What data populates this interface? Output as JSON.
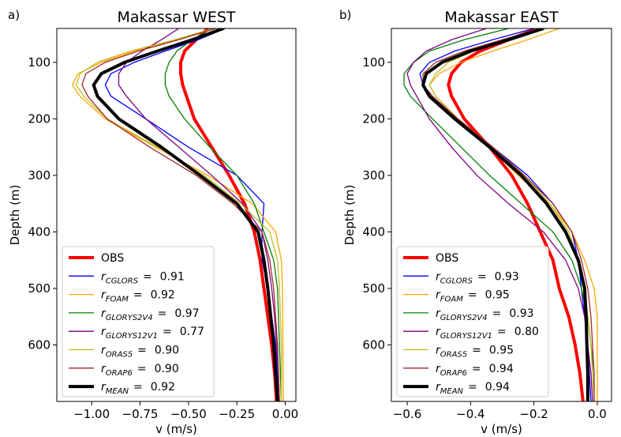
{
  "chart_data": [
    {
      "type": "line",
      "panel_label": "a)",
      "title": "Makassar WEST",
      "x_label": "v (m/s)",
      "y_label": "Depth (m)",
      "xlim": [
        -1.18,
        0.055
      ],
      "ylim": [
        700,
        40
      ],
      "y_inverted": true,
      "xticks": [
        {
          "value": -1.0,
          "label": "−1.00"
        },
        {
          "value": -0.75,
          "label": "−0.75"
        },
        {
          "value": -0.5,
          "label": "−0.50"
        },
        {
          "value": -0.25,
          "label": "−0.25"
        },
        {
          "value": 0,
          "label": "0.00"
        }
      ],
      "yticks": [
        100,
        200,
        300,
        400,
        500,
        600
      ],
      "legend": "lower left",
      "legend_symbol": "r",
      "legend_operator": "=",
      "depth": [
        40,
        60,
        80,
        100,
        120,
        140,
        160,
        200,
        250,
        300,
        350,
        400,
        450,
        500,
        550,
        600,
        650,
        700
      ],
      "series": [
        {
          "name": "OBS",
          "color": "#ff0000",
          "width": 4,
          "values": [
            -0.4,
            -0.46,
            -0.52,
            -0.54,
            -0.54,
            -0.53,
            -0.51,
            -0.47,
            -0.38,
            -0.29,
            -0.21,
            -0.16,
            -0.13,
            -0.11,
            -0.09,
            -0.07,
            -0.055,
            -0.045
          ]
        },
        {
          "name": "CGLORS",
          "r": 0.91,
          "color": "#0000ff",
          "width": 1.3,
          "values": [
            -0.31,
            -0.45,
            -0.62,
            -0.78,
            -0.9,
            -0.93,
            -0.9,
            -0.72,
            -0.5,
            -0.25,
            -0.11,
            -0.12,
            -0.12,
            -0.09,
            -0.07,
            -0.05,
            -0.04,
            -0.03
          ]
        },
        {
          "name": "FOAM",
          "r": 0.92,
          "color": "#ffa500",
          "width": 1.3,
          "values": [
            -0.36,
            -0.55,
            -0.78,
            -0.95,
            -1.07,
            -1.1,
            -1.06,
            -0.93,
            -0.67,
            -0.4,
            -0.17,
            -0.05,
            -0.02,
            -0.015,
            -0.013,
            -0.012,
            -0.011,
            -0.01
          ]
        },
        {
          "name": "GLORYS2V4",
          "r": 0.97,
          "color": "#008000",
          "width": 1.3,
          "values": [
            -0.38,
            -0.48,
            -0.56,
            -0.6,
            -0.62,
            -0.62,
            -0.6,
            -0.52,
            -0.39,
            -0.25,
            -0.16,
            -0.11,
            -0.06,
            -0.04,
            -0.035,
            -0.03,
            -0.025,
            -0.02
          ]
        },
        {
          "name": "GLORYS12V1",
          "r": 0.77,
          "color": "#800080",
          "width": 1.3,
          "values": [
            -0.55,
            -0.64,
            -0.74,
            -0.82,
            -0.86,
            -0.86,
            -0.82,
            -0.72,
            -0.55,
            -0.38,
            -0.22,
            -0.12,
            -0.09,
            -0.07,
            -0.055,
            -0.045,
            -0.035,
            -0.03
          ]
        },
        {
          "name": "ORAS5",
          "r": {
            "value": 0.9,
            "label": "0.90"
          },
          "color": "#bcbd22",
          "width": 1.3,
          "values": [
            -0.37,
            -0.57,
            -0.8,
            -0.97,
            -1.06,
            -1.08,
            -1.04,
            -0.92,
            -0.66,
            -0.42,
            -0.23,
            -0.08,
            -0.04,
            -0.03,
            -0.025,
            -0.02,
            -0.02,
            -0.02
          ]
        },
        {
          "name": "ORAP6",
          "r": {
            "value": 0.9,
            "label": "0.90"
          },
          "color": "#a52a2a",
          "width": 1.3,
          "values": [
            -0.36,
            -0.55,
            -0.76,
            -0.93,
            -1.03,
            -1.05,
            -1.02,
            -0.92,
            -0.7,
            -0.46,
            -0.27,
            -0.12,
            -0.08,
            -0.06,
            -0.05,
            -0.04,
            -0.035,
            -0.03
          ]
        },
        {
          "name": "MEAN",
          "r": 0.92,
          "color": "#000000",
          "width": 4,
          "values": [
            -0.32,
            -0.48,
            -0.66,
            -0.83,
            -0.95,
            -0.99,
            -0.97,
            -0.86,
            -0.64,
            -0.44,
            -0.25,
            -0.14,
            -0.11,
            -0.09,
            -0.075,
            -0.06,
            -0.05,
            -0.04
          ]
        }
      ]
    },
    {
      "type": "line",
      "panel_label": "b)",
      "title": "Makassar EAST",
      "x_label": "v (m/s)",
      "y_label": "Depth (m)",
      "xlim": [
        -0.65,
        0.045
      ],
      "ylim": [
        700,
        40
      ],
      "y_inverted": true,
      "xticks": [
        {
          "value": -0.6,
          "label": "−0.6"
        },
        {
          "value": -0.4,
          "label": "−0.4"
        },
        {
          "value": -0.2,
          "label": "−0.2"
        },
        {
          "value": 0,
          "label": "0.0"
        }
      ],
      "yticks": [
        100,
        200,
        300,
        400,
        500,
        600
      ],
      "legend": "lower left",
      "legend_symbol": "r",
      "legend_operator": "=",
      "depth": [
        40,
        60,
        80,
        100,
        120,
        140,
        160,
        200,
        250,
        300,
        350,
        400,
        450,
        500,
        550,
        600,
        650,
        700
      ],
      "series": [
        {
          "name": "OBS",
          "color": "#ff0000",
          "width": 4,
          "values": [
            -0.19,
            -0.28,
            -0.37,
            -0.43,
            -0.46,
            -0.47,
            -0.46,
            -0.42,
            -0.34,
            -0.27,
            -0.22,
            -0.18,
            -0.14,
            -0.12,
            -0.09,
            -0.07,
            -0.055,
            -0.045
          ]
        },
        {
          "name": "CGLORS",
          "r": 0.93,
          "color": "#0000ff",
          "width": 1.3,
          "values": [
            -0.2,
            -0.33,
            -0.45,
            -0.53,
            -0.56,
            -0.55,
            -0.52,
            -0.44,
            -0.33,
            -0.22,
            -0.14,
            -0.08,
            -0.06,
            -0.05,
            -0.04,
            -0.03,
            -0.025,
            -0.02
          ]
        },
        {
          "name": "FOAM",
          "r": 0.95,
          "color": "#ffa500",
          "width": 1.3,
          "values": [
            -0.12,
            -0.22,
            -0.33,
            -0.43,
            -0.5,
            -0.53,
            -0.51,
            -0.44,
            -0.34,
            -0.25,
            -0.15,
            -0.08,
            -0.04,
            -0.01,
            0,
            0,
            0,
            0
          ]
        },
        {
          "name": "GLORYS2V4",
          "r": 0.93,
          "color": "#008000",
          "width": 1.3,
          "values": [
            -0.28,
            -0.42,
            -0.53,
            -0.58,
            -0.61,
            -0.61,
            -0.59,
            -0.52,
            -0.43,
            -0.34,
            -0.24,
            -0.14,
            -0.08,
            -0.05,
            -0.03,
            -0.02,
            -0.01,
            -0.01
          ]
        },
        {
          "name": "GLORYS12V1",
          "r": {
            "value": 0.8,
            "label": "0.80"
          },
          "color": "#800080",
          "width": 1.3,
          "values": [
            -0.35,
            -0.46,
            -0.54,
            -0.58,
            -0.6,
            -0.59,
            -0.57,
            -0.53,
            -0.46,
            -0.38,
            -0.28,
            -0.17,
            -0.1,
            -0.06,
            -0.04,
            -0.03,
            -0.02,
            -0.015
          ]
        },
        {
          "name": "ORAS5",
          "r": 0.95,
          "color": "#bcbd22",
          "width": 1.3,
          "values": [
            -0.16,
            -0.27,
            -0.39,
            -0.47,
            -0.51,
            -0.53,
            -0.51,
            -0.44,
            -0.33,
            -0.23,
            -0.15,
            -0.09,
            -0.06,
            -0.04,
            -0.03,
            -0.02,
            -0.015,
            -0.01
          ]
        },
        {
          "name": "ORAP6",
          "r": 0.94,
          "color": "#a52a2a",
          "width": 1.3,
          "values": [
            -0.18,
            -0.3,
            -0.42,
            -0.51,
            -0.55,
            -0.55,
            -0.52,
            -0.44,
            -0.33,
            -0.23,
            -0.14,
            -0.08,
            -0.05,
            -0.03,
            -0.02,
            -0.015,
            -0.01,
            -0.01
          ]
        },
        {
          "name": "MEAN",
          "r": 0.94,
          "color": "#000000",
          "width": 4,
          "values": [
            -0.17,
            -0.28,
            -0.4,
            -0.49,
            -0.54,
            -0.55,
            -0.53,
            -0.45,
            -0.34,
            -0.24,
            -0.16,
            -0.1,
            -0.06,
            -0.04,
            -0.035,
            -0.033,
            -0.03,
            -0.03
          ]
        }
      ]
    }
  ]
}
